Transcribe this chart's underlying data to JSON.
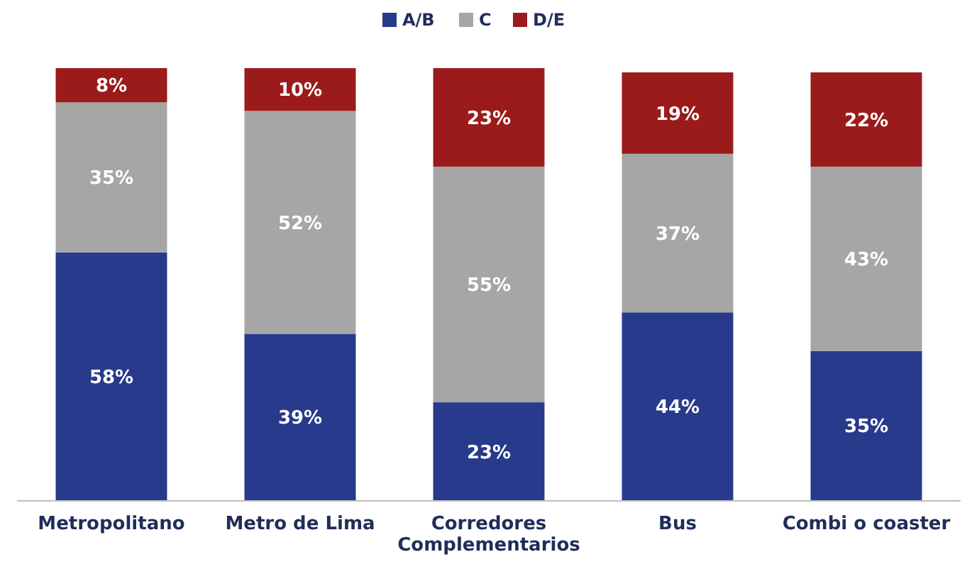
{
  "chart_data": {
    "type": "bar",
    "stacked": true,
    "legend": "top",
    "categories": [
      "Metropolitano",
      "Metro de Lima",
      "Corredores Complementarios",
      "Bus",
      "Combi o coaster"
    ],
    "series": [
      {
        "name": "A/B",
        "color": "#283a8c",
        "values": [
          58,
          39,
          23,
          44,
          35
        ],
        "value_labels": [
          "58%",
          "39%",
          "23%",
          "44%",
          "35%"
        ]
      },
      {
        "name": "C",
        "color": "#a6a6a6",
        "values": [
          35,
          52,
          55,
          37,
          43
        ],
        "value_labels": [
          "35%",
          "52%",
          "55%",
          "37%",
          "43%"
        ]
      },
      {
        "name": "D/E",
        "color": "#9b1b1b",
        "values": [
          8,
          10,
          23,
          19,
          22
        ],
        "value_labels": [
          "8%",
          "10%",
          "23%",
          "19%",
          "22%"
        ]
      }
    ]
  }
}
